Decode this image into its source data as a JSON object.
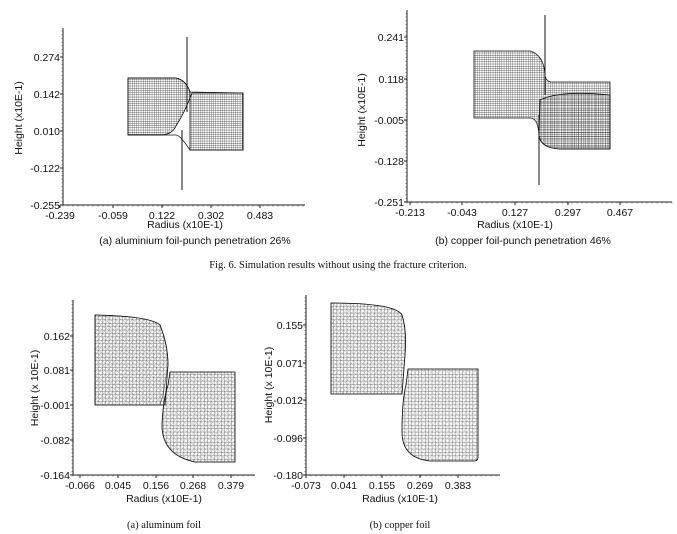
{
  "figure_caption": "Fig. 6. Simulation results without using the fracture criterion.",
  "panels": [
    {
      "caption": "(a) aluminium foil-punch penetration 26%",
      "xlabel": "Radius (x10E-1)",
      "ylabel": "Height (x10E-1)",
      "xticks": [
        "-0.239",
        "-0.059",
        "0.122",
        "0.302",
        "0.483"
      ],
      "yticks": [
        "0.274",
        "0.142",
        "0.010",
        "-0.122",
        "-0.255"
      ]
    },
    {
      "caption": "(b) copper foil-punch penetration 46%",
      "xlabel": "Radius (x10E-1)",
      "ylabel": "Height (x10E-1)",
      "xticks": [
        "-0.213",
        "-0.043",
        "0.127",
        "0.297",
        "0.467"
      ],
      "yticks": [
        "0.241",
        "0.118",
        "-0.005",
        "-0.128",
        "-0.251"
      ]
    },
    {
      "caption": "(a)  aluminum  foil",
      "xlabel": "Radius (x10E-1)",
      "ylabel": "Height (x 10E-1)",
      "xticks": [
        "-0.066",
        "0.045",
        "0.156",
        "0.268",
        "0.379"
      ],
      "yticks": [
        "0.162",
        "0.081",
        "-0.001",
        "-0.082",
        "-0.164"
      ]
    },
    {
      "caption": "(b)  copper  foil",
      "xlabel": "Radius (x10E-1)",
      "ylabel": "Height (x 10E-1)",
      "xticks": [
        "-0.073",
        "0.041",
        "0.155",
        "0.269",
        "0.383"
      ],
      "yticks": [
        "0.155",
        "0.071",
        "-0.012",
        "-0.096",
        "-0.180"
      ]
    }
  ]
}
